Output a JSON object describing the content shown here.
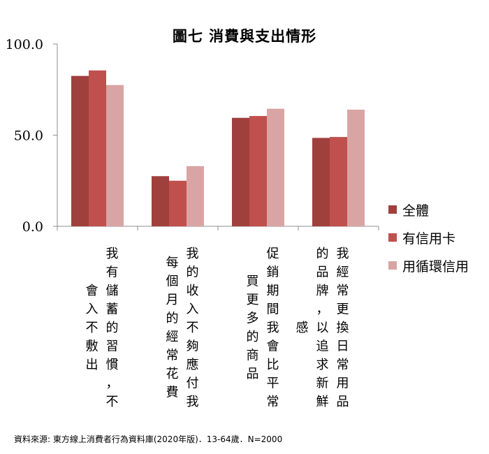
{
  "chart_data": {
    "type": "bar",
    "title": "圖七  消費與支出情形",
    "categories": [
      "我有儲蓄的習慣，不會入不敷出",
      "我的收入不夠應付我每個月的經常花費",
      "促銷期間我會比平常買更多的商品",
      "我經常更換日常用品的品牌，以追求新鮮感"
    ],
    "category_columns": [
      [
        "我有儲蓄的習慣，不",
        "會入不敷出"
      ],
      [
        "我的收入不夠應付我",
        "每個月的經常花費"
      ],
      [
        "促銷期間我會比平常",
        "買更多的商品"
      ],
      [
        "我經常更換日常用品",
        "的品牌，以追求新鮮",
        "感"
      ]
    ],
    "series": [
      {
        "name": "全體",
        "color": "#a0403d",
        "values": [
          82.5,
          27.5,
          59.5,
          48.5
        ]
      },
      {
        "name": "有信用卡",
        "color": "#c0504d",
        "values": [
          85.5,
          25.0,
          60.5,
          49.0
        ]
      },
      {
        "name": "用循環信用",
        "color": "#d9a5a4",
        "values": [
          77.5,
          33.0,
          64.5,
          64.0
        ]
      }
    ],
    "y_ticks": [
      "100.0",
      "50.0",
      "0.0"
    ],
    "ylim": [
      0,
      100
    ],
    "grid": false,
    "legend_position": "right"
  },
  "source": "資料來源: 東方線上消費者行為資料庫(2020年版)．13-64歲．N=2000"
}
